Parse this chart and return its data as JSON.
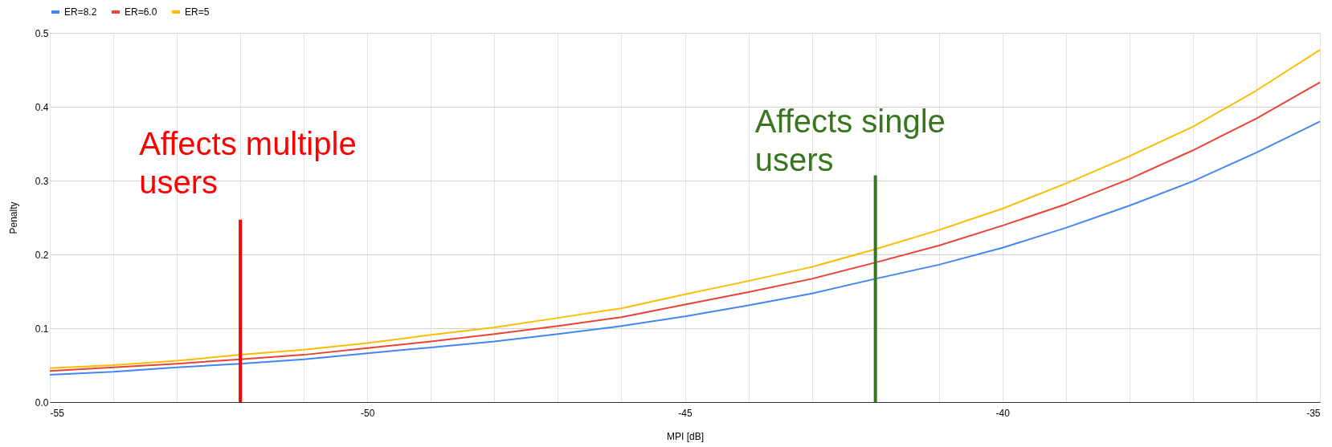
{
  "chart_data": {
    "type": "line",
    "xlabel": "MPI [dB]",
    "ylabel": "Penalty",
    "x": [
      -55,
      -54,
      -53,
      -52,
      -51,
      -50,
      -49,
      -48,
      -47,
      -46,
      -45,
      -44,
      -43,
      -42,
      -41,
      -40,
      -39,
      -38,
      -37,
      -36,
      -35
    ],
    "series": [
      {
        "name": "ER=8.2",
        "color": "#4285f4",
        "values": [
          0.037,
          0.041,
          0.047,
          0.052,
          0.058,
          0.066,
          0.074,
          0.082,
          0.092,
          0.103,
          0.116,
          0.131,
          0.147,
          0.167,
          0.186,
          0.209,
          0.236,
          0.266,
          0.299,
          0.338,
          0.38
        ]
      },
      {
        "name": "ER=6.0",
        "color": "#ea4335",
        "values": [
          0.042,
          0.047,
          0.052,
          0.058,
          0.064,
          0.073,
          0.082,
          0.092,
          0.103,
          0.115,
          0.132,
          0.149,
          0.167,
          0.189,
          0.212,
          0.239,
          0.268,
          0.302,
          0.341,
          0.384,
          0.433
        ]
      },
      {
        "name": "ER=5",
        "color": "#fbbc04",
        "values": [
          0.046,
          0.05,
          0.056,
          0.064,
          0.071,
          0.08,
          0.091,
          0.101,
          0.114,
          0.127,
          0.146,
          0.164,
          0.183,
          0.207,
          0.233,
          0.262,
          0.296,
          0.333,
          0.373,
          0.422,
          0.477
        ]
      }
    ],
    "xlim": [
      -55,
      -35
    ],
    "xticks": [
      -55,
      {
        "value": -54,
        "label": null
      },
      {
        "value": -53,
        "label": null
      },
      {
        "value": -52,
        "label": null
      },
      {
        "value": -51,
        "label": null
      },
      -50,
      {
        "value": -49,
        "label": null
      },
      {
        "value": -48,
        "label": null
      },
      {
        "value": -47,
        "label": null
      },
      {
        "value": -46,
        "label": null
      },
      -45,
      {
        "value": -44,
        "label": null
      },
      {
        "value": -43,
        "label": null
      },
      {
        "value": -42,
        "label": null
      },
      {
        "value": -41,
        "label": null
      },
      -40,
      {
        "value": -39,
        "label": null
      },
      {
        "value": -38,
        "label": null
      },
      {
        "value": -37,
        "label": null
      },
      {
        "value": -36,
        "label": null
      },
      -35
    ],
    "ylim": [
      0,
      0.5
    ],
    "yticks": [
      {
        "value": 0,
        "label": "0.0"
      },
      0.1,
      0.2,
      0.3,
      0.4,
      0.5
    ],
    "ref_lines": [
      {
        "axis": "x",
        "value": -52,
        "label": "Affects multiple\nusers",
        "color": "#ff0000"
      },
      {
        "axis": "x",
        "value": -42,
        "label": "Affects single\nusers",
        "color": "#38761d"
      }
    ],
    "grid": true,
    "legend": "top",
    "line_style": "solid",
    "marker": "none"
  }
}
